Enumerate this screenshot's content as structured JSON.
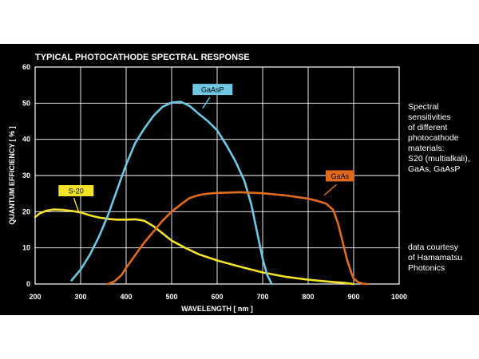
{
  "chart_data": {
    "type": "line",
    "title": "TYPICAL PHOTOCATHODE SPECTRAL RESPONSE",
    "xlabel": "WAVELENGTH [ nm ]",
    "ylabel": "QUANTUM EFFICIENCY [ % ]",
    "xlim": [
      200,
      1000
    ],
    "ylim": [
      0,
      60
    ],
    "xticks": [
      200,
      300,
      400,
      500,
      600,
      700,
      800,
      900,
      1000
    ],
    "yticks": [
      0,
      10,
      20,
      30,
      40,
      50,
      60
    ],
    "grid": true,
    "series": [
      {
        "name": "S-20",
        "color": "#f2e22a",
        "x": [
          200,
          210,
          225,
          240,
          260,
          280,
          300,
          320,
          340,
          360,
          380,
          400,
          420,
          440,
          460,
          480,
          500,
          530,
          560,
          600,
          650,
          700,
          750,
          800,
          850,
          880,
          900
        ],
        "y": [
          18.5,
          19.5,
          20.3,
          20.6,
          20.5,
          20.2,
          19.8,
          19.0,
          18.4,
          18.0,
          17.8,
          17.8,
          17.9,
          17.5,
          16.0,
          14.0,
          12.0,
          10.0,
          8.2,
          6.5,
          4.8,
          3.2,
          2.0,
          1.2,
          0.6,
          0.3,
          0
        ]
      },
      {
        "name": "GaAsP",
        "color": "#6ec8e4",
        "x": [
          280,
          300,
          320,
          340,
          360,
          380,
          400,
          420,
          440,
          460,
          480,
          500,
          520,
          540,
          560,
          580,
          600,
          620,
          640,
          660,
          675,
          690,
          700,
          710,
          720
        ],
        "y": [
          1,
          4,
          8,
          13,
          19,
          26,
          33,
          39,
          43,
          46.5,
          49,
          50.2,
          50.4,
          49.2,
          47,
          45,
          42.5,
          38.5,
          34,
          28.5,
          22,
          13,
          7,
          2.5,
          0
        ]
      },
      {
        "name": "GaAs",
        "color": "#e06a1e",
        "x": [
          360,
          375,
          390,
          400,
          420,
          440,
          460,
          480,
          500,
          520,
          540,
          560,
          580,
          600,
          650,
          700,
          750,
          800,
          820,
          840,
          855,
          865,
          875,
          885,
          895,
          900,
          910,
          920,
          930
        ],
        "y": [
          0,
          0.8,
          2.5,
          4.5,
          8,
          11.5,
          14.5,
          17.5,
          20,
          22,
          23.8,
          24.6,
          25,
          25.2,
          25.4,
          25.1,
          24.5,
          23.6,
          23.0,
          22.2,
          20.5,
          17,
          12,
          7,
          3,
          1.5,
          0.5,
          0.1,
          0
        ]
      }
    ]
  },
  "labels": {
    "s20": "S-20",
    "gaasp": "GaAsP",
    "gaas": "GaAs"
  },
  "side_description": [
    "Spectral",
    "sensitivities",
    "of different",
    "photocathode",
    "materials:",
    "S20 (multialkali),",
    "GaAs, GaAsP"
  ],
  "side_credit": [
    "data courtesy",
    "of Hamamatsu",
    "Photonics"
  ]
}
